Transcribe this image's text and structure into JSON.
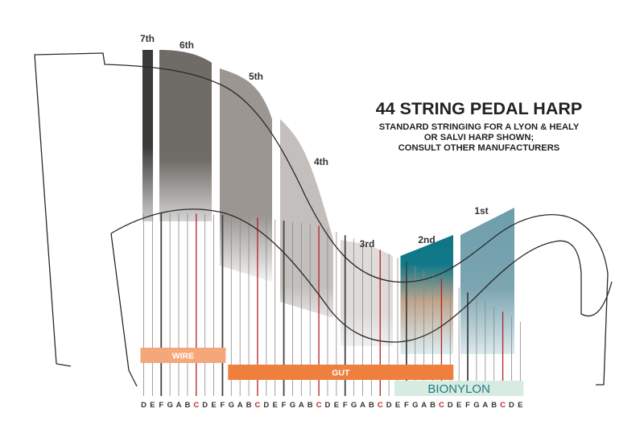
{
  "title": {
    "main": "44 STRING PEDAL HARP",
    "sub": [
      "STANDARD STRINGING FOR A LYON & HEALY",
      "OR SALVI HARP SHOWN;",
      "CONSULT OTHER MANUFACTURERS"
    ]
  },
  "octaves": [
    {
      "label": "7th",
      "count": 2
    },
    {
      "label": "6th",
      "count": 7
    },
    {
      "label": "5th",
      "count": 7
    },
    {
      "label": "4th",
      "count": 7
    },
    {
      "label": "3rd",
      "count": 7
    },
    {
      "label": "2nd",
      "count": 7
    },
    {
      "label": "1st",
      "count": 7
    }
  ],
  "materials": [
    {
      "label": "WIRE",
      "from": 0,
      "to": 9,
      "color": "#f4a87a"
    },
    {
      "label": "GUT",
      "from": 10,
      "to": 35,
      "color": "#ef7f3c"
    },
    {
      "label": "BIONYLON",
      "from": 29,
      "to": 43,
      "color": "#d8ebe1"
    }
  ],
  "notes": [
    "D",
    "E",
    "F",
    "G",
    "A",
    "B",
    "C",
    "D",
    "E",
    "F",
    "G",
    "A",
    "B",
    "C",
    "D",
    "E",
    "F",
    "G",
    "A",
    "B",
    "C",
    "D",
    "E",
    "F",
    "G",
    "A",
    "B",
    "C",
    "D",
    "E",
    "F",
    "G",
    "A",
    "B",
    "C",
    "D",
    "E",
    "F",
    "G",
    "A",
    "B",
    "C",
    "D",
    "E"
  ],
  "colors": {
    "c_string": "#b2202b",
    "string": "#555555",
    "note_label": "#333333",
    "c_label": "#c1272d",
    "outline": "#2a2a2a",
    "title": "#222222"
  }
}
